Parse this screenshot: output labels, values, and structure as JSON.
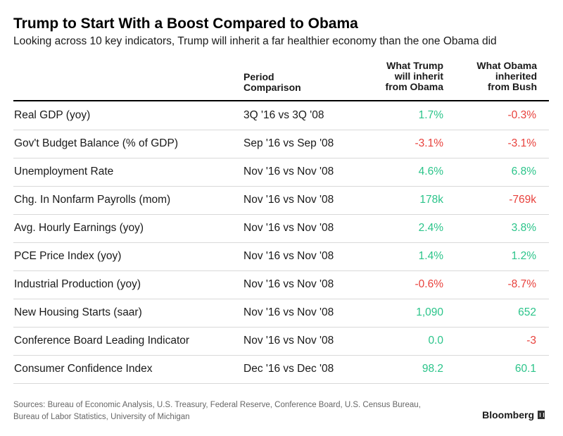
{
  "title": "Trump to Start With a Boost Compared to Obama",
  "subtitle": "Looking across 10 key indicators, Trump will inherit a far healthier economy than the one Obama did",
  "colors": {
    "positive": "#2bc48a",
    "negative": "#e8413c"
  },
  "chart_data": {
    "type": "table",
    "columns": [
      "",
      "Period Comparison",
      "What Trump will inherit from Obama",
      "What Obama inherited from Bush"
    ],
    "header_lines": {
      "period": [
        "Period",
        "Comparison"
      ],
      "trump": [
        "What Trump",
        "will inherit",
        "from Obama"
      ],
      "obama": [
        "What Obama",
        "inherited",
        "from Bush"
      ]
    },
    "rows": [
      {
        "indicator": "Real GDP (yoy)",
        "period": "3Q '16 vs 3Q '08",
        "trump": "1.7%",
        "obama": "-0.3%",
        "trump_status": "positive",
        "obama_status": "negative"
      },
      {
        "indicator": "Gov't Budget Balance (% of GDP)",
        "period": "Sep '16 vs Sep '08",
        "trump": "-3.1%",
        "obama": "-3.1%",
        "trump_status": "negative",
        "obama_status": "negative"
      },
      {
        "indicator": "Unemployment Rate",
        "period": "Nov '16 vs Nov '08",
        "trump": "4.6%",
        "obama": "6.8%",
        "trump_status": "positive",
        "obama_status": "positive"
      },
      {
        "indicator": "Chg. In Nonfarm Payrolls (mom)",
        "period": "Nov '16 vs Nov '08",
        "trump": "178k",
        "obama": "-769k",
        "trump_status": "positive",
        "obama_status": "negative"
      },
      {
        "indicator": "Avg. Hourly Earnings (yoy)",
        "period": "Nov '16 vs Nov '08",
        "trump": "2.4%",
        "obama": "3.8%",
        "trump_status": "positive",
        "obama_status": "positive"
      },
      {
        "indicator": "PCE Price Index (yoy)",
        "period": "Nov '16 vs Nov '08",
        "trump": "1.4%",
        "obama": "1.2%",
        "trump_status": "positive",
        "obama_status": "positive"
      },
      {
        "indicator": "Industrial Production (yoy)",
        "period": "Nov '16 vs Nov '08",
        "trump": "-0.6%",
        "obama": "-8.7%",
        "trump_status": "negative",
        "obama_status": "negative"
      },
      {
        "indicator": "New Housing Starts (saar)",
        "period": "Nov '16 vs Nov '08",
        "trump": "1,090",
        "obama": "652",
        "trump_status": "positive",
        "obama_status": "positive"
      },
      {
        "indicator": "Conference Board Leading Indicator",
        "period": "Nov '16 vs Nov '08",
        "trump": "0.0",
        "obama": "-3",
        "trump_status": "positive",
        "obama_status": "negative"
      },
      {
        "indicator": "Consumer Confidence Index",
        "period": "Dec '16 vs Dec '08",
        "trump": "98.2",
        "obama": "60.1",
        "trump_status": "positive",
        "obama_status": "positive"
      }
    ]
  },
  "footer": {
    "sources_line1": "Sources: Bureau of Economic Analysis, U.S. Treasury, Federal Reserve, Conference Board, U.S. Census Bureau,",
    "sources_line2": "Bureau of Labor Statistics, University of Michigan",
    "brand": "Bloomberg",
    "brand_icon": "bloomberg-logo-icon"
  }
}
